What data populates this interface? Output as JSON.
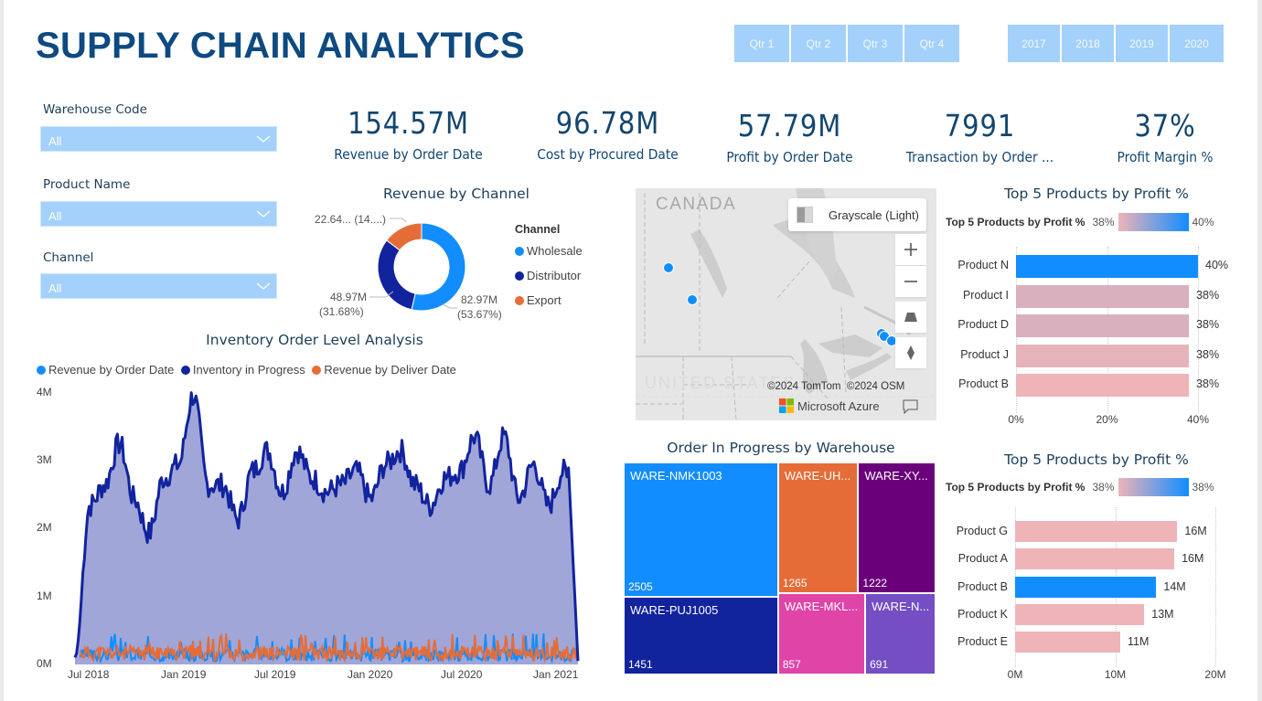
{
  "header": {
    "title": "SUPPLY CHAIN ANALYTICS"
  },
  "quarter_slicer": {
    "items": [
      "Qtr 1",
      "Qtr 2",
      "Qtr 3",
      "Qtr 4"
    ]
  },
  "year_slicer": {
    "items": [
      "2017",
      "2018",
      "2019",
      "2020"
    ]
  },
  "filters": [
    {
      "label": "Warehouse Code",
      "value": "All"
    },
    {
      "label": "Product Name",
      "value": "All"
    },
    {
      "label": "Channel",
      "value": "All"
    }
  ],
  "kpis": [
    {
      "value": "154.57M",
      "label": "Revenue by Order Date"
    },
    {
      "value": "96.78M",
      "label": "Cost by Procured Date"
    },
    {
      "value": "57.79M",
      "label": "Profit by Order Date"
    },
    {
      "value": "7991",
      "label": "Transaction by Order ..."
    },
    {
      "value": "37%",
      "label": "Profit Margin %"
    }
  ],
  "colors": {
    "wholesale": "#118dff",
    "distributor": "#12239e",
    "export": "#e66c37",
    "title": "#0e4a80",
    "slicer": "#a3d1fb",
    "bar_low": "#eeb4b8",
    "bar_high": "#118dff"
  },
  "map": {
    "style_label": "Grayscale (Light)",
    "country_label_top": "CANADA",
    "country_label_bottom": "UNITED STATES",
    "copyright": "©2024 TomTom  ©2024 OSM",
    "brand": "Microsoft Azure",
    "controls": [
      "zoom-in",
      "zoom-out",
      "pitch",
      "compass"
    ]
  },
  "chart_data": [
    {
      "type": "pie",
      "title": "Revenue by Channel",
      "legend_title": "Channel",
      "legend_position": "right",
      "donut": true,
      "slices": [
        {
          "name": "Wholesale",
          "value": 82.97,
          "unit": "M",
          "percent": 53.67,
          "label": "82.97M",
          "sublabel": "(53.67%)"
        },
        {
          "name": "Distributor",
          "value": 48.97,
          "unit": "M",
          "percent": 31.68,
          "label": "48.97M",
          "sublabel": "(31.68%)"
        },
        {
          "name": "Export",
          "value": 22.64,
          "unit": "M",
          "percent": 14.65,
          "label": "22.64... (14....)",
          "sublabel": ""
        }
      ]
    },
    {
      "type": "area",
      "title": "Inventory Order Level Analysis",
      "legend_position": "top-left",
      "series": [
        {
          "name": "Revenue by Order Date",
          "approx_level": 0.15,
          "approx_max": 0.45
        },
        {
          "name": "Inventory in Progress",
          "values_millions_monthly": [
            0.1,
            2.3,
            2.6,
            3.2,
            2.4,
            1.9,
            2.7,
            2.9,
            3.9,
            2.6,
            2.6,
            2.1,
            2.8,
            3.1,
            2.5,
            3.1,
            2.7,
            2.5,
            2.6,
            2.8,
            2.4,
            2.9,
            3.1,
            2.6,
            2.3,
            2.7,
            2.8,
            3.3,
            2.6,
            3.3,
            2.4,
            2.9,
            2.3,
            2.8,
            2.0
          ]
        },
        {
          "name": "Revenue by Deliver Date",
          "approx_level": 0.18,
          "approx_max": 0.45
        }
      ],
      "x_ticks": [
        "Jul 2018",
        "Jan 2019",
        "Jul 2019",
        "Jan 2020",
        "Jul 2020",
        "Jan 2021"
      ],
      "y_ticks": [
        "0M",
        "1M",
        "2M",
        "3M",
        "4M"
      ],
      "ylim": [
        0,
        4
      ],
      "yunit": "M"
    },
    {
      "type": "table",
      "subtype": "treemap",
      "title": "Order In Progress by Warehouse",
      "items": [
        {
          "name": "WARE-NMK1003",
          "display": "WARE-NMK1003",
          "value": 2505
        },
        {
          "name": "WARE-PUJ1005",
          "display": "WARE-PUJ1005",
          "value": 1451
        },
        {
          "name": "WARE-UH...",
          "display": "WARE-UH...",
          "value": 1265
        },
        {
          "name": "WARE-XY...",
          "display": "WARE-XY...",
          "value": 1222
        },
        {
          "name": "WARE-MKL...",
          "display": "WARE-MKL...",
          "value": 857
        },
        {
          "name": "WARE-N...",
          "display": "WARE-N...",
          "value": 691
        }
      ],
      "colors": [
        "#118dff",
        "#12239e",
        "#e66c37",
        "#6b007b",
        "#e044a7",
        "#744ec2"
      ]
    },
    {
      "type": "bar",
      "orientation": "horizontal",
      "title": "Top 5 Products by Profit %",
      "gradient_legend": {
        "title": "Top 5 Products by Profit %",
        "min": "38%",
        "max": "40%"
      },
      "categories": [
        "Product N",
        "Product I",
        "Product D",
        "Product J",
        "Product B"
      ],
      "values": [
        40,
        38,
        38,
        38,
        38
      ],
      "value_labels": [
        "40%",
        "38%",
        "38%",
        "38%",
        "38%"
      ],
      "bar_colors": [
        "#118dff",
        "#d9b0be",
        "#d9b0be",
        "#e6b3bb",
        "#eeb4b8"
      ],
      "x_ticks": [
        "0%",
        "20%",
        "40%"
      ],
      "xlim": [
        0,
        40
      ]
    },
    {
      "type": "bar",
      "orientation": "horizontal",
      "title": "Top 5 Products by Profit %",
      "gradient_legend": {
        "title": "Top 5 Products by Profit %",
        "min": "38%",
        "max": "38%"
      },
      "categories": [
        "Product G",
        "Product A",
        "Product B",
        "Product K",
        "Product E"
      ],
      "values": [
        16.2,
        15.9,
        14.1,
        12.9,
        10.5
      ],
      "value_labels": [
        "16M",
        "16M",
        "14M",
        "13M",
        "11M"
      ],
      "bar_colors": [
        "#eeb4b8",
        "#eeb4b8",
        "#118dff",
        "#eeb4b8",
        "#eeb4b8"
      ],
      "x_ticks": [
        "0M",
        "10M",
        "20M"
      ],
      "xlim": [
        0,
        20
      ]
    }
  ]
}
